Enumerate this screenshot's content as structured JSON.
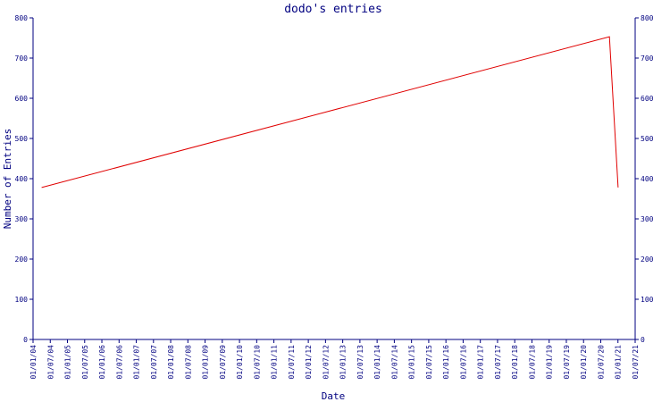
{
  "chart_data": {
    "type": "line",
    "title": "dodo's entries",
    "xlabel": "Date",
    "ylabel": "Number of Entries",
    "ylim": [
      0,
      800
    ],
    "yticks": [
      0,
      100,
      200,
      300,
      400,
      500,
      600,
      700,
      800
    ],
    "x_tick_labels": [
      "01/01/04",
      "01/07/04",
      "01/01/05",
      "01/07/05",
      "01/01/06",
      "01/07/06",
      "01/01/07",
      "01/07/07",
      "01/01/08",
      "01/07/08",
      "01/01/09",
      "01/07/09",
      "01/01/10",
      "01/07/10",
      "01/01/11",
      "01/07/11",
      "01/01/12",
      "01/07/12",
      "01/01/13",
      "01/07/13",
      "01/01/14",
      "01/07/14",
      "01/01/15",
      "01/07/15",
      "01/01/16",
      "01/07/16",
      "01/01/17",
      "01/07/17",
      "01/01/18",
      "01/07/18",
      "01/01/19",
      "01/07/19",
      "01/01/20",
      "01/07/20",
      "01/01/21",
      "01/07/21"
    ],
    "xlim": [
      "2004-01-01",
      "2021-07-01"
    ],
    "grid": false,
    "axes": "left-right-bottom",
    "series": [
      {
        "color": "#e00000",
        "points": [
          {
            "x": "2004-04-01",
            "y": 378
          },
          {
            "x": "2020-10-01",
            "y": 753
          },
          {
            "x": "2021-01-01",
            "y": 378
          }
        ]
      }
    ],
    "colors": {
      "axis": "#000080",
      "tick_label": "#000080",
      "title": "#000080",
      "line": "#e00000"
    }
  }
}
